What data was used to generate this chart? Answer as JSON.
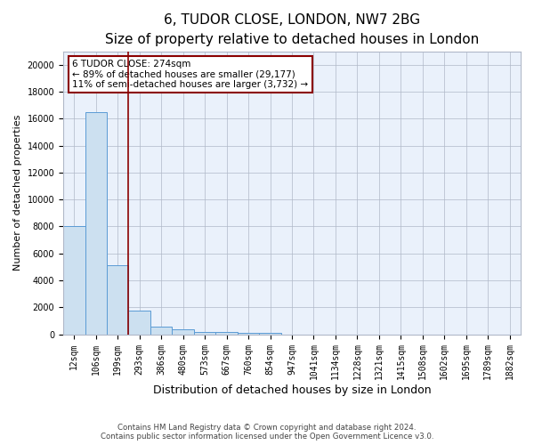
{
  "title1": "6, TUDOR CLOSE, LONDON, NW7 2BG",
  "title2": "Size of property relative to detached houses in London",
  "xlabel": "Distribution of detached houses by size in London",
  "ylabel": "Number of detached properties",
  "categories": [
    "12sqm",
    "106sqm",
    "199sqm",
    "293sqm",
    "386sqm",
    "480sqm",
    "573sqm",
    "667sqm",
    "760sqm",
    "854sqm",
    "947sqm",
    "1041sqm",
    "1134sqm",
    "1228sqm",
    "1321sqm",
    "1415sqm",
    "1508sqm",
    "1602sqm",
    "1695sqm",
    "1789sqm",
    "1882sqm"
  ],
  "values": [
    8000,
    16500,
    5100,
    1750,
    550,
    350,
    200,
    150,
    100,
    80,
    0,
    0,
    0,
    0,
    0,
    0,
    0,
    0,
    0,
    0,
    0
  ],
  "bar_color": "#cce0f0",
  "bar_edge_color": "#5b9bd5",
  "vline_x_index": 2.5,
  "vline_color": "#8b0000",
  "annotation_text": "6 TUDOR CLOSE: 274sqm\n← 89% of detached houses are smaller (29,177)\n11% of semi-detached houses are larger (3,732) →",
  "annotation_box_color": "#ffffff",
  "annotation_box_edge_color": "#8b0000",
  "ylim": [
    0,
    21000
  ],
  "yticks": [
    0,
    2000,
    4000,
    6000,
    8000,
    10000,
    12000,
    14000,
    16000,
    18000,
    20000
  ],
  "bg_color": "#eaf1fb",
  "footer1": "Contains HM Land Registry data © Crown copyright and database right 2024.",
  "footer2": "Contains public sector information licensed under the Open Government Licence v3.0.",
  "title_fontsize": 11,
  "subtitle_fontsize": 9,
  "tick_fontsize": 7,
  "ylabel_fontsize": 8,
  "xlabel_fontsize": 9
}
